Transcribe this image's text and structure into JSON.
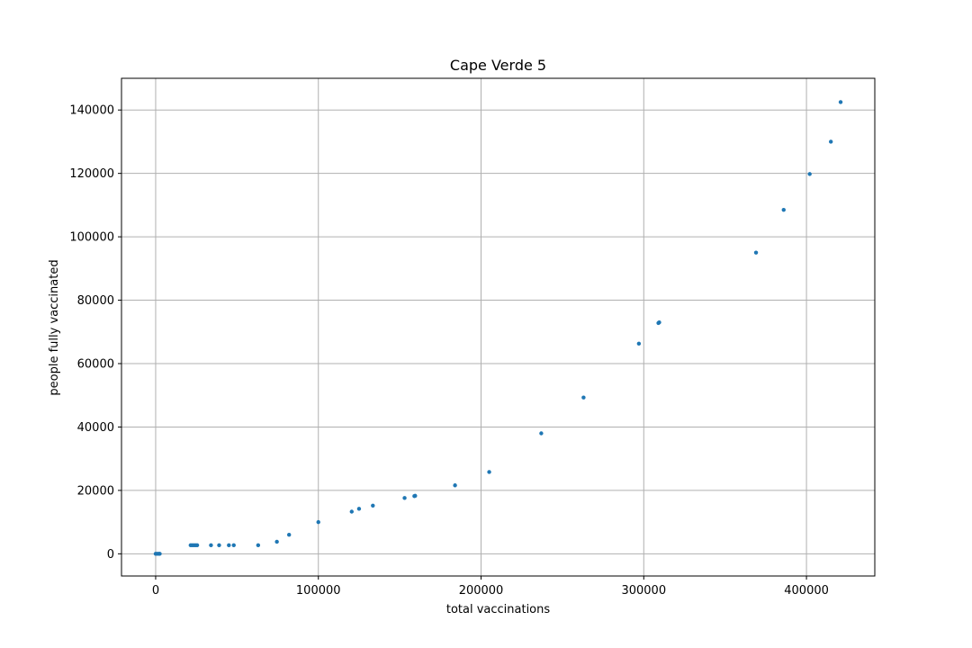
{
  "chart_data": {
    "type": "scatter",
    "title": "Cape Verde 5",
    "xlabel": "total vaccinations",
    "ylabel": "people fully vaccinated",
    "xlim": [
      -21000,
      442000
    ],
    "ylim": [
      -7000,
      150000
    ],
    "xticks": [
      0,
      100000,
      200000,
      300000,
      400000
    ],
    "yticks": [
      0,
      20000,
      40000,
      60000,
      80000,
      100000,
      120000,
      140000
    ],
    "grid": true,
    "marker_color": "#1f77b4",
    "points": [
      {
        "x": 0,
        "y": 0
      },
      {
        "x": 1000,
        "y": 0
      },
      {
        "x": 2000,
        "y": 0
      },
      {
        "x": 2500,
        "y": 0
      },
      {
        "x": 21500,
        "y": 2700
      },
      {
        "x": 22500,
        "y": 2700
      },
      {
        "x": 23500,
        "y": 2700
      },
      {
        "x": 24500,
        "y": 2700
      },
      {
        "x": 25500,
        "y": 2700
      },
      {
        "x": 34000,
        "y": 2700
      },
      {
        "x": 39000,
        "y": 2700
      },
      {
        "x": 45000,
        "y": 2700
      },
      {
        "x": 48000,
        "y": 2700
      },
      {
        "x": 63000,
        "y": 2700
      },
      {
        "x": 74500,
        "y": 3800
      },
      {
        "x": 82000,
        "y": 6000
      },
      {
        "x": 100000,
        "y": 10000
      },
      {
        "x": 120500,
        "y": 13300
      },
      {
        "x": 125000,
        "y": 14200
      },
      {
        "x": 133500,
        "y": 15200
      },
      {
        "x": 153000,
        "y": 17600
      },
      {
        "x": 159000,
        "y": 18200
      },
      {
        "x": 159500,
        "y": 18300
      },
      {
        "x": 184000,
        "y": 21600
      },
      {
        "x": 205000,
        "y": 25800
      },
      {
        "x": 237000,
        "y": 38000
      },
      {
        "x": 263000,
        "y": 49300
      },
      {
        "x": 297000,
        "y": 66300
      },
      {
        "x": 309000,
        "y": 72800
      },
      {
        "x": 309500,
        "y": 73000
      },
      {
        "x": 369000,
        "y": 95000
      },
      {
        "x": 386000,
        "y": 108500
      },
      {
        "x": 402000,
        "y": 119800
      },
      {
        "x": 415000,
        "y": 130000
      },
      {
        "x": 421000,
        "y": 142500
      }
    ]
  }
}
